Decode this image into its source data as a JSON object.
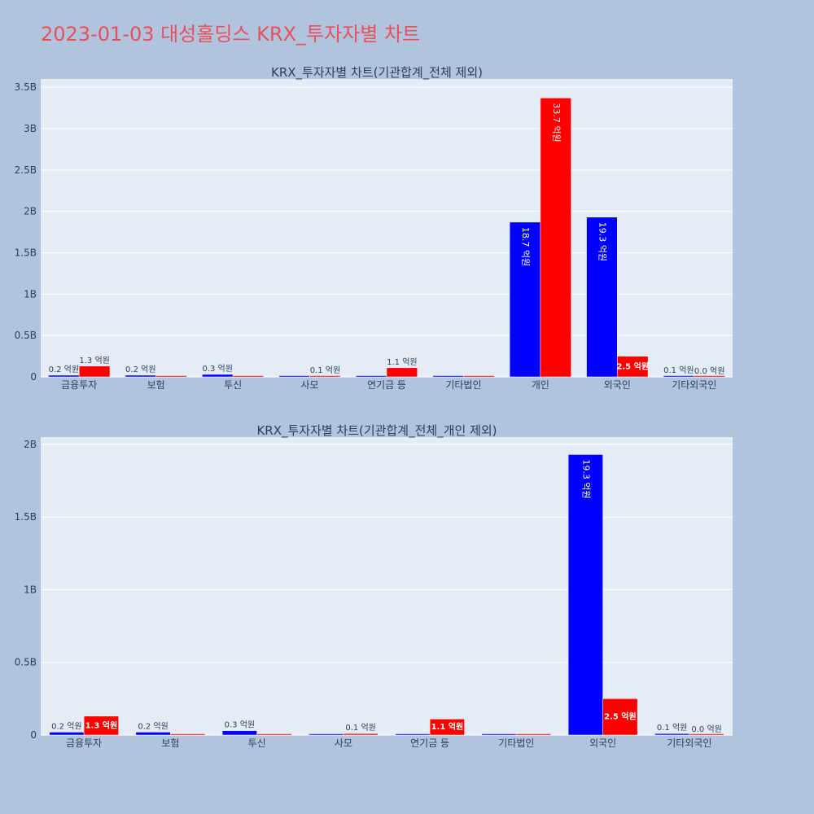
{
  "page_title": "2023-01-03 대성홀딩스 KRX_투자자별 차트",
  "colors": {
    "buy": "#0000ff",
    "sell": "#ff0000",
    "plot_bg": "#e5ecf6",
    "paper_bg": "#b0c4de",
    "title": "#e8505b"
  },
  "chart_data": [
    {
      "type": "bar",
      "title": "KRX_투자자별 차트(기관합계_전체 제외)",
      "categories": [
        "금융투자",
        "보험",
        "투신",
        "사모",
        "연기금 등",
        "기타법인",
        "개인",
        "외국인",
        "기타외국인"
      ],
      "series": [
        {
          "color": "#0000ff",
          "values": [
            0.02,
            0.02,
            0.03,
            0,
            0,
            0,
            1.87,
            1.93,
            0.01
          ],
          "labels": [
            "0.2 억원",
            "0.2 억원",
            "0.3 억원",
            "",
            "",
            "",
            "18.7 억원",
            "19.3 억원",
            "0.1 억원"
          ]
        },
        {
          "color": "#ff0000",
          "values": [
            0.13,
            0,
            0,
            0.01,
            0.11,
            0,
            3.37,
            0.25,
            0.0
          ],
          "labels": [
            "1.3 억원",
            "",
            "",
            "0.1 억원",
            "1.1 억원",
            "",
            "33.7 억원",
            "2.5 억원",
            "0.0 억원"
          ]
        }
      ],
      "ylim": [
        0,
        3.6
      ],
      "yticks": [
        0,
        0.5,
        1,
        1.5,
        2,
        2.5,
        3,
        3.5
      ],
      "ytick_labels": [
        "0",
        "0.5B",
        "1B",
        "1.5B",
        "2B",
        "2.5B",
        "3B",
        "3.5B"
      ],
      "grid": true
    },
    {
      "type": "bar",
      "title": "KRX_투자자별 차트(기관합계_전체_개인 제외)",
      "categories": [
        "금융투자",
        "보험",
        "투신",
        "사모",
        "연기금 등",
        "기타법인",
        "외국인",
        "기타외국인"
      ],
      "series": [
        {
          "color": "#0000ff",
          "values": [
            0.02,
            0.02,
            0.03,
            0,
            0,
            0,
            1.93,
            0.01
          ],
          "labels": [
            "0.2 억원",
            "0.2 억원",
            "0.3 억원",
            "",
            "",
            "",
            "19.3 억원",
            "0.1 억원"
          ]
        },
        {
          "color": "#ff0000",
          "values": [
            0.13,
            0,
            0,
            0.01,
            0.11,
            0,
            0.25,
            0.0
          ],
          "labels": [
            "1.3 억원",
            "",
            "",
            "0.1 억원",
            "1.1 억원",
            "",
            "2.5 억원",
            "0.0 억원"
          ]
        }
      ],
      "ylim": [
        0,
        2.05
      ],
      "yticks": [
        0,
        0.5,
        1,
        1.5,
        2
      ],
      "ytick_labels": [
        "0",
        "0.5B",
        "1B",
        "1.5B",
        "2B"
      ],
      "grid": true
    }
  ]
}
